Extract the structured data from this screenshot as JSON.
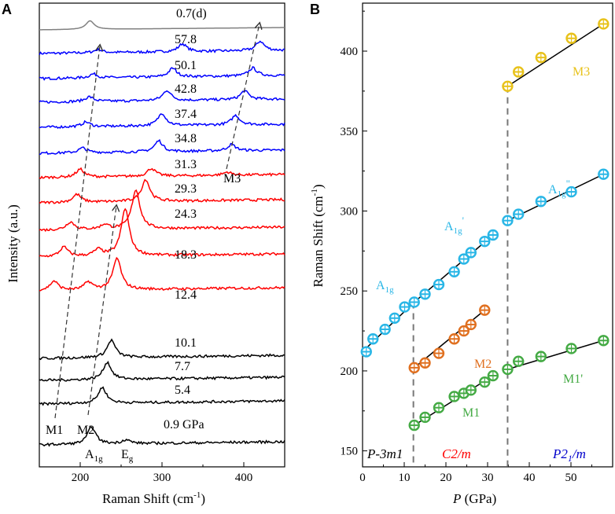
{
  "chart_data": [
    {
      "panel": "A",
      "type": "line",
      "xlabel": "Raman Shift (cm⁻¹)",
      "ylabel": "Intensity (a.u.)",
      "xlim": [
        150,
        450
      ],
      "xticks": [
        200,
        300,
        400
      ],
      "series": [
        {
          "name": "0.7(d)",
          "color": "#808080",
          "peaks": [
            [
              212,
              11
            ]
          ],
          "base": 0
        },
        {
          "name": "57.8",
          "color": "#0000ff",
          "peaks": [
            [
              222,
              4
            ],
            [
              325,
              10
            ],
            [
              420,
              12
            ]
          ],
          "base": 0
        },
        {
          "name": "50.1",
          "color": "#0000ff",
          "peaks": [
            [
              216,
              5
            ],
            [
              313,
              11
            ],
            [
              411,
              10
            ]
          ],
          "base": 0
        },
        {
          "name": "42.8",
          "color": "#0000ff",
          "peaks": [
            [
              211,
              6
            ],
            [
              306,
              13
            ],
            [
              401,
              11
            ]
          ],
          "base": 0
        },
        {
          "name": "37.4",
          "color": "#0000ff",
          "peaks": [
            [
              207,
              6
            ],
            [
              300,
              16
            ],
            [
              390,
              12
            ]
          ],
          "base": 0
        },
        {
          "name": "34.8",
          "color": "#0000ff",
          "peaks": [
            [
              203,
              6
            ],
            [
              296,
              14
            ],
            [
              385,
              8
            ]
          ],
          "base": 0
        },
        {
          "name": "31.3",
          "color": "#ff0000",
          "peaks": [
            [
              200,
              10
            ],
            [
              287,
              10
            ],
            [
              380,
              4
            ]
          ],
          "base": 0
        },
        {
          "name": "29.3",
          "color": "#ff0000",
          "peaks": [
            [
              196,
              10
            ],
            [
              280,
              28
            ]
          ],
          "base": 0
        },
        {
          "name": "24.3",
          "color": "#ff0000",
          "peaks": [
            [
              188,
              10
            ],
            [
              230,
              6
            ],
            [
              268,
              50
            ]
          ],
          "base": 0
        },
        {
          "name": "18.3",
          "color": "#ff0000",
          "peaks": [
            [
              180,
              12
            ],
            [
              222,
              8
            ],
            [
              255,
              60
            ]
          ],
          "base": 0
        },
        {
          "name": "12.4",
          "color": "#ff0000",
          "peaks": [
            [
              168,
              12
            ],
            [
              210,
              10
            ],
            [
              245,
              40
            ]
          ],
          "base": 0
        },
        {
          "name": "10.1",
          "color": "#000000",
          "peaks": [
            [
              238,
              22
            ]
          ],
          "base": 0
        },
        {
          "name": "7.7",
          "color": "#000000",
          "peaks": [
            [
              233,
              22
            ]
          ],
          "base": 0
        },
        {
          "name": "5.4",
          "color": "#000000",
          "peaks": [
            [
              227,
              20
            ]
          ],
          "base": 0
        },
        {
          "name": "0.9 GPa",
          "color": "#000000",
          "peaks": [
            [
              214,
              22
            ],
            [
              256,
              5
            ]
          ],
          "base": 0
        }
      ],
      "annotations": {
        "m1": "M1",
        "m2": "M2",
        "m3": "M3",
        "a1g_base": "A",
        "a1g_sub": "1g",
        "eg_base": "E",
        "eg_sub": "g"
      }
    },
    {
      "panel": "B",
      "type": "scatter",
      "xlabel": "P (GPa)",
      "ylabel": "Raman Shift (cm⁻¹)",
      "xlim": [
        0,
        60
      ],
      "ylim": [
        140,
        430
      ],
      "xticks": [
        0,
        10,
        20,
        30,
        40,
        50
      ],
      "yticks": [
        150,
        200,
        250,
        300,
        350,
        400
      ],
      "phase_boundaries": [
        12.2,
        34.8
      ],
      "series": [
        {
          "name": "A1g",
          "color": "#29b6e6",
          "points": [
            [
              0.9,
              212
            ],
            [
              2.5,
              220
            ],
            [
              5.4,
              226
            ],
            [
              7.7,
              233
            ],
            [
              10.1,
              240
            ],
            [
              12.4,
              243
            ],
            [
              15,
              248
            ],
            [
              18.3,
              254
            ],
            [
              22,
              262
            ],
            [
              24.3,
              270
            ],
            [
              26,
              274
            ],
            [
              29.3,
              281
            ],
            [
              31.3,
              285
            ],
            [
              34.8,
              294
            ],
            [
              37.4,
              298
            ],
            [
              42.8,
              306
            ],
            [
              50.1,
              312
            ],
            [
              57.8,
              323
            ]
          ],
          "fit": [
            [
              [
                0,
                212
              ],
              [
                12.4,
                243
              ]
            ],
            [
              [
                12.4,
                243
              ],
              [
                31.3,
                285
              ]
            ],
            [
              [
                34.8,
                294
              ],
              [
                57.8,
                323
              ]
            ]
          ]
        },
        {
          "name": "M2",
          "color": "#e07020",
          "points": [
            [
              12.4,
              202
            ],
            [
              15,
              205
            ],
            [
              18.3,
              211
            ],
            [
              22,
              220
            ],
            [
              24.3,
              225
            ],
            [
              26,
              229
            ],
            [
              29.3,
              238
            ]
          ],
          "fit": [
            [
              [
                12.4,
                202
              ],
              [
                29.3,
                238
              ]
            ]
          ]
        },
        {
          "name": "M1",
          "color": "#44aa44",
          "points": [
            [
              12.4,
              166
            ],
            [
              15,
              171
            ],
            [
              18.3,
              177
            ],
            [
              22,
              184
            ],
            [
              24.3,
              186
            ],
            [
              26,
              188
            ],
            [
              29.3,
              193
            ],
            [
              31.3,
              197
            ],
            [
              34.8,
              201
            ],
            [
              37.4,
              206
            ],
            [
              42.8,
              209
            ],
            [
              50.1,
              214
            ],
            [
              57.8,
              219
            ]
          ],
          "fit": [
            [
              [
                12.4,
                166
              ],
              [
                31.3,
                197
              ]
            ],
            [
              [
                34.8,
                201
              ],
              [
                57.8,
                219
              ]
            ]
          ]
        },
        {
          "name": "M3",
          "color": "#e8c21b",
          "points": [
            [
              34.8,
              378
            ],
            [
              37.4,
              387
            ],
            [
              42.8,
              396
            ],
            [
              50.1,
              408
            ],
            [
              57.8,
              417
            ]
          ],
          "fit": [
            [
              [
                34.8,
                378
              ],
              [
                57.8,
                417
              ]
            ]
          ]
        }
      ],
      "labels": {
        "a1g_base": "A",
        "a1g_sub": "1g",
        "a1g_prime_base": "A",
        "a1g_prime_sub": "1g",
        "a1g_prime_mark": "'",
        "a1g_dprime_base": "A",
        "a1g_dprime_sub": "1g",
        "a1g_dprime_mark": "\"",
        "m1_prime": "M1'",
        "m1": "M1",
        "m2": "M2",
        "m3": "M3"
      },
      "phases": {
        "p3m1": "P-3m1",
        "c2m": "C2/m",
        "p21m_base": "P2",
        "p21m_sub": "1",
        "p21m_end": "/m"
      },
      "phase_colors": {
        "p3m1": "#000000",
        "c2m": "#ff0000",
        "p21m": "#0000cc"
      }
    }
  ],
  "panel_letters": {
    "a": "A",
    "b": "B"
  },
  "axis_text": {
    "a_xlabel_base": "Raman Shift (cm",
    "a_xlabel_sup": "-1",
    "a_xlabel_end": ")",
    "a_ylabel": "Intensity (a.u.)",
    "b_xlabel_italic": "P",
    "b_xlabel_rest": " (GPa)",
    "b_ylabel_base": "Raman Shift (cm",
    "b_ylabel_sup": "-1",
    "b_ylabel_end": ")"
  }
}
